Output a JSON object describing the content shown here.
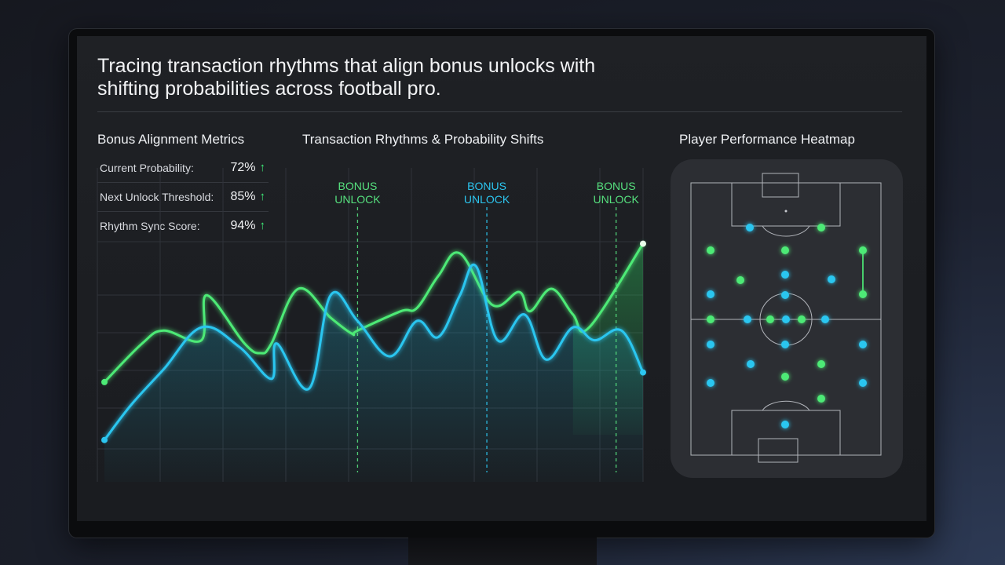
{
  "headline": "Tracing transaction rhythms that align bonus unlocks with shifting probabilities across football pro.",
  "metrics": {
    "title": "Bonus Alignment Metrics",
    "rows": [
      {
        "label": "Current Probability:",
        "value": "72%",
        "trend": "up"
      },
      {
        "label": "Next Unlock Threshold:",
        "value": "85%",
        "trend": "up"
      },
      {
        "label": "Rhythm Sync Score:",
        "value": "94%",
        "trend": "up"
      }
    ]
  },
  "chart": {
    "title": "Transaction Rhythms & Probability Shifts"
  },
  "chart_data": {
    "type": "line",
    "title": "Transaction Rhythms & Probability Shifts",
    "xlabel": "",
    "ylabel": "",
    "grid": true,
    "series": [
      {
        "color": "#4dea76",
        "x": [
          0,
          7,
          11,
          18,
          19,
          26,
          29,
          31,
          36,
          42,
          46,
          47,
          55,
          58,
          62,
          66,
          72,
          77,
          79,
          83,
          87,
          90,
          100
        ],
        "y": [
          31,
          43,
          47,
          44,
          58,
          43,
          40,
          43,
          60,
          51,
          46,
          47,
          53,
          54,
          64,
          71,
          55,
          59,
          53,
          60,
          52,
          48,
          74
        ]
      },
      {
        "color": "#2cc6f0",
        "x": [
          0,
          5,
          11,
          18,
          25,
          31,
          32,
          38,
          42,
          47,
          53,
          58,
          62,
          66,
          69,
          73,
          78,
          82,
          87,
          91,
          96,
          100
        ],
        "y": [
          13,
          24,
          35,
          48,
          42,
          32,
          43,
          29,
          58,
          50,
          39,
          50,
          45,
          58,
          67,
          44,
          52,
          38,
          48,
          44,
          47,
          34
        ]
      }
    ],
    "xlim": [
      0,
      100
    ],
    "ylim": [
      0,
      100
    ],
    "markers": [
      {
        "label_line1": "BONUS",
        "label_line2": "UNLOCK",
        "x": 47,
        "color": "#56e07e"
      },
      {
        "label_line1": "BONUS",
        "label_line2": "UNLOCK",
        "x": 71,
        "color": "#2cc6f0"
      },
      {
        "label_line1": "BONUS",
        "label_line2": "UNLOCK",
        "x": 95,
        "color": "#56e07e"
      }
    ]
  },
  "heatmap": {
    "title": "Player Performance Heatmap",
    "colors": {
      "green": "#4dea76",
      "blue": "#2cc6f0"
    }
  },
  "colors": {
    "accent_green": "#4dea76",
    "accent_blue": "#2cc6f0",
    "trend_up": "#3ff07a",
    "background": "#1e2024"
  }
}
